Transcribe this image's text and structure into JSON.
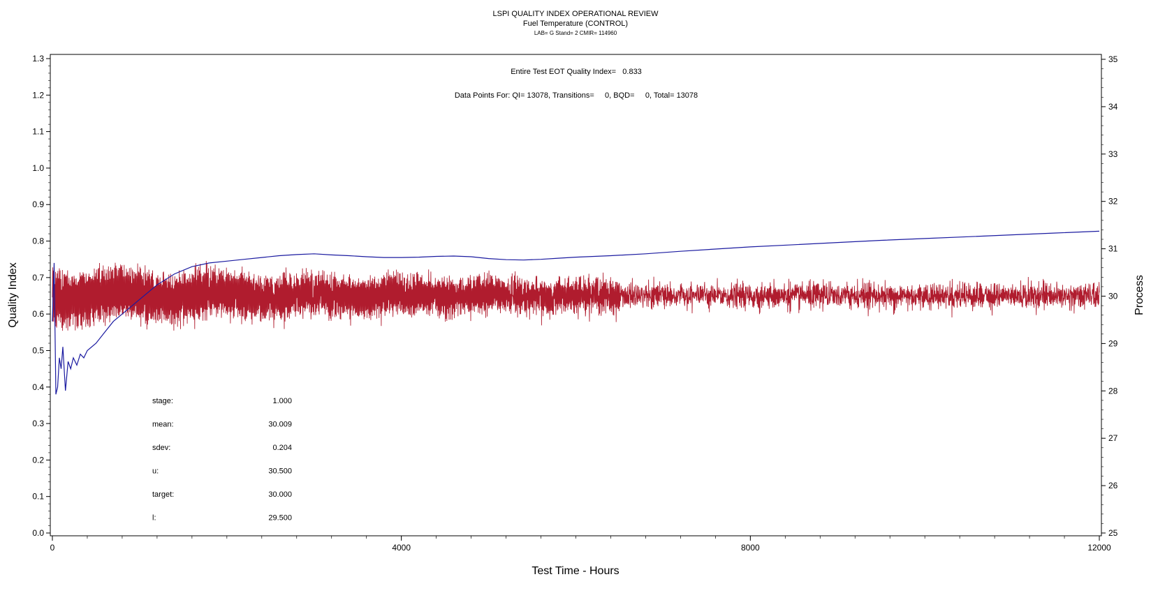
{
  "chart_data": {
    "type": "line",
    "title": "LSPI QUALITY INDEX OPERATIONAL REVIEW",
    "subtitle": "Fuel Temperature (CONTROL)",
    "subsubtitle": "LAB= G Stand= 2 CMIR= 114960",
    "xlabel": "Test Time - Hours",
    "ylabel_left": "Quality Index",
    "ylabel_right": "Process",
    "xlim": [
      0,
      12000
    ],
    "ylim_left": [
      0,
      1.3
    ],
    "ylim_right": [
      25,
      35
    ],
    "x_ticks": [
      0,
      4000,
      8000,
      12000
    ],
    "x_tick_labels": [
      "0",
      "4000",
      "8000",
      "12000"
    ],
    "y_left_ticks": [
      0.0,
      0.1,
      0.2,
      0.3,
      0.4,
      0.5,
      0.6,
      0.7,
      0.8,
      0.9,
      1.0,
      1.1,
      1.2,
      1.3
    ],
    "y_left_tick_labels": [
      "0.0",
      "0.1",
      "0.2",
      "0.3",
      "0.4",
      "0.5",
      "0.6",
      "0.7",
      "0.8",
      "0.9",
      "1.0",
      "1.1",
      "1.2",
      "1.3"
    ],
    "y_right_ticks": [
      25,
      26,
      27,
      28,
      29,
      30,
      31,
      32,
      33,
      34,
      35
    ],
    "y_right_tick_labels": [
      "25",
      "26",
      "27",
      "28",
      "29",
      "30",
      "31",
      "32",
      "33",
      "34",
      "35"
    ],
    "annotation_1": "Entire Test EOT Quality Index=   0.833",
    "annotation_2": "Data Points For: QI= 13078, Transitions=     0, BQD=     0, Total= 13078",
    "stats": [
      {
        "label": "stage:",
        "value": "1.000"
      },
      {
        "label": "mean:",
        "value": "30.009"
      },
      {
        "label": "sdev:",
        "value": "0.204"
      },
      {
        "label": "u:",
        "value": "30.500"
      },
      {
        "label": "target:",
        "value": "30.000"
      },
      {
        "label": "l:",
        "value": "29.500"
      }
    ],
    "series": [
      {
        "axis": "left",
        "color": "#1a1aa0",
        "x": [
          0,
          20,
          40,
          60,
          80,
          100,
          120,
          150,
          180,
          210,
          240,
          280,
          320,
          360,
          400,
          500,
          600,
          700,
          800,
          900,
          1000,
          1200,
          1400,
          1600,
          1800,
          2000,
          2200,
          2400,
          2600,
          2800,
          3000,
          3200,
          3400,
          3600,
          3800,
          4000,
          4200,
          4400,
          4600,
          4800,
          5000,
          5200,
          5400,
          5600,
          5800,
          6000,
          6400,
          6800,
          7200,
          7600,
          8000,
          8500,
          9000,
          9500,
          10000,
          10500,
          11000,
          11500,
          12000
        ],
        "y": [
          0.58,
          0.74,
          0.38,
          0.4,
          0.48,
          0.45,
          0.51,
          0.39,
          0.47,
          0.45,
          0.48,
          0.46,
          0.49,
          0.48,
          0.5,
          0.52,
          0.55,
          0.58,
          0.6,
          0.62,
          0.64,
          0.68,
          0.71,
          0.73,
          0.74,
          0.745,
          0.75,
          0.755,
          0.76,
          0.763,
          0.765,
          0.762,
          0.76,
          0.757,
          0.755,
          0.755,
          0.756,
          0.758,
          0.759,
          0.757,
          0.752,
          0.749,
          0.748,
          0.75,
          0.753,
          0.756,
          0.76,
          0.765,
          0.772,
          0.778,
          0.784,
          0.79,
          0.796,
          0.802,
          0.807,
          0.812,
          0.817,
          0.822,
          0.827
        ]
      },
      {
        "axis": "right",
        "color": "#b01c2e",
        "x": [
          0,
          12000
        ],
        "y": [
          30.0,
          30.0
        ],
        "noise_mean": 30.009,
        "noise_sdev": 0.204
      }
    ]
  }
}
